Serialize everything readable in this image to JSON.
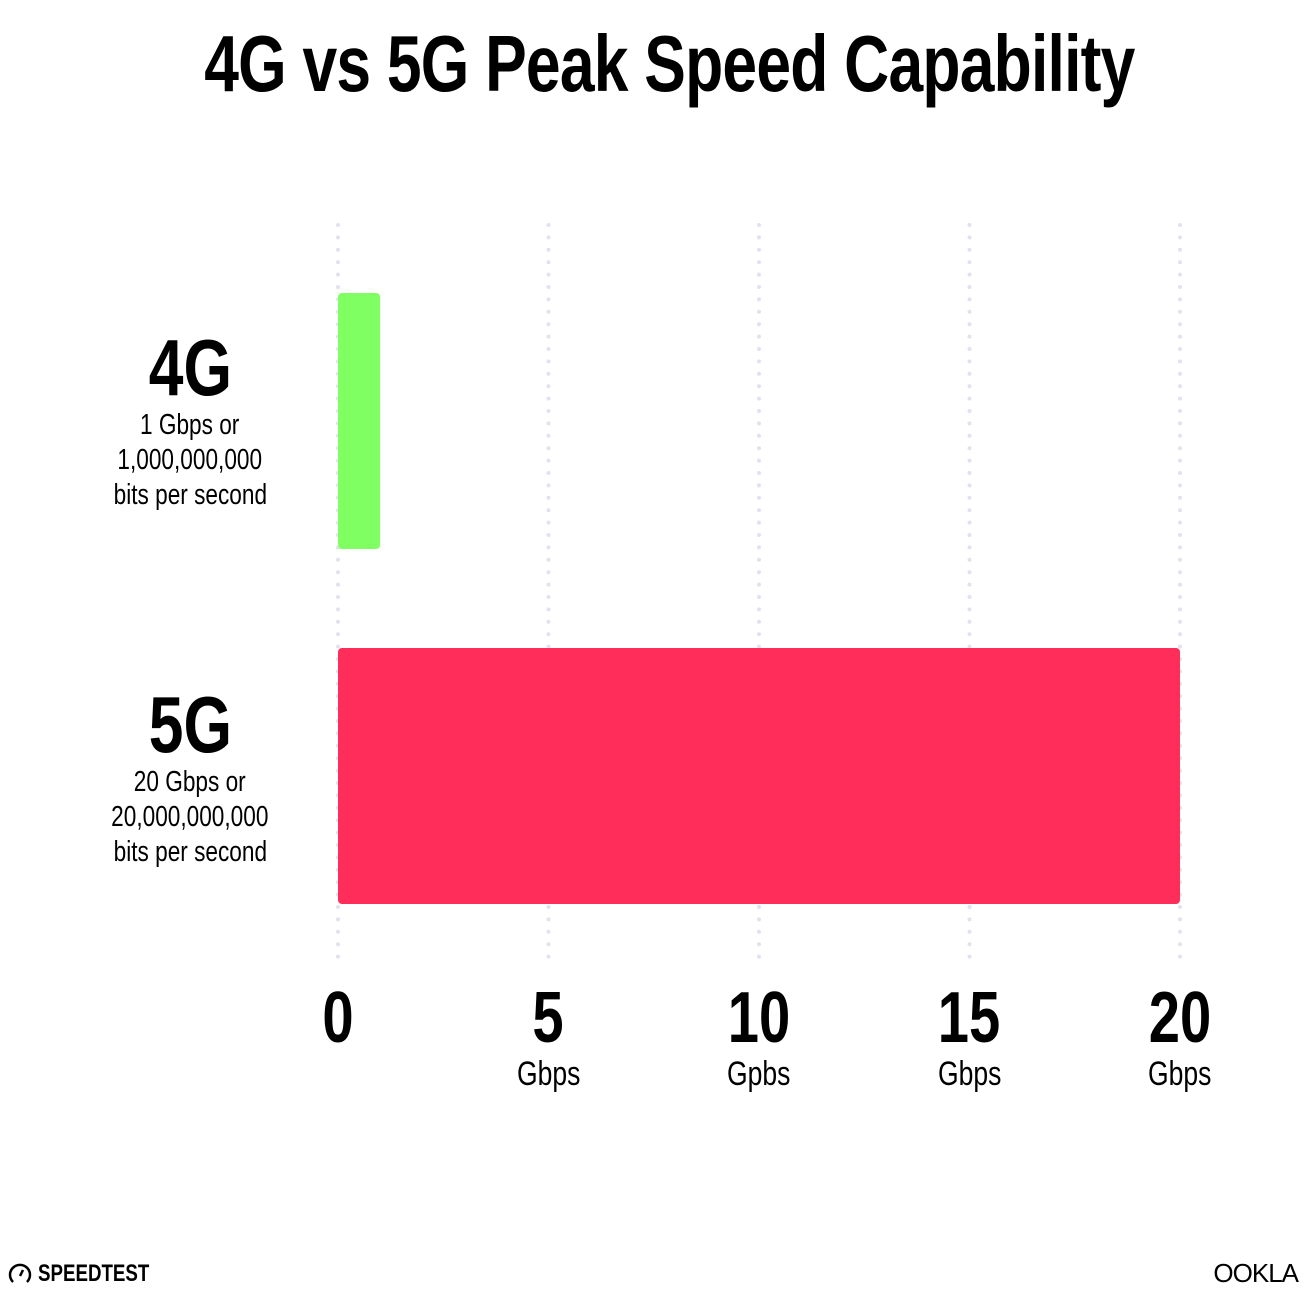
{
  "chart_data": {
    "type": "bar",
    "orientation": "horizontal",
    "title": "4G vs 5G Peak Speed Capability",
    "categories": [
      "4G",
      "5G"
    ],
    "category_descriptions": [
      [
        "1 Gbps or",
        "1,000,000,000",
        "bits per second"
      ],
      [
        "20 Gbps or",
        "20,000,000,000",
        "bits per second"
      ]
    ],
    "values": [
      1,
      20
    ],
    "colors": [
      "#80ff62",
      "#ff2d5a"
    ],
    "xlim": [
      0,
      20
    ],
    "x_ticks": [
      {
        "value": 0,
        "label": "0",
        "unit": ""
      },
      {
        "value": 5,
        "label": "5",
        "unit": "Gbps"
      },
      {
        "value": 10,
        "label": "10",
        "unit": "Gpbs"
      },
      {
        "value": 15,
        "label": "15",
        "unit": "Gbps"
      },
      {
        "value": 20,
        "label": "20",
        "unit": "Gbps"
      }
    ],
    "grid": "vertical dotted",
    "grid_color": "#e2e2ef"
  },
  "footer": {
    "left_logo": "SPEEDTEST",
    "right_logo": "OOKLA"
  }
}
